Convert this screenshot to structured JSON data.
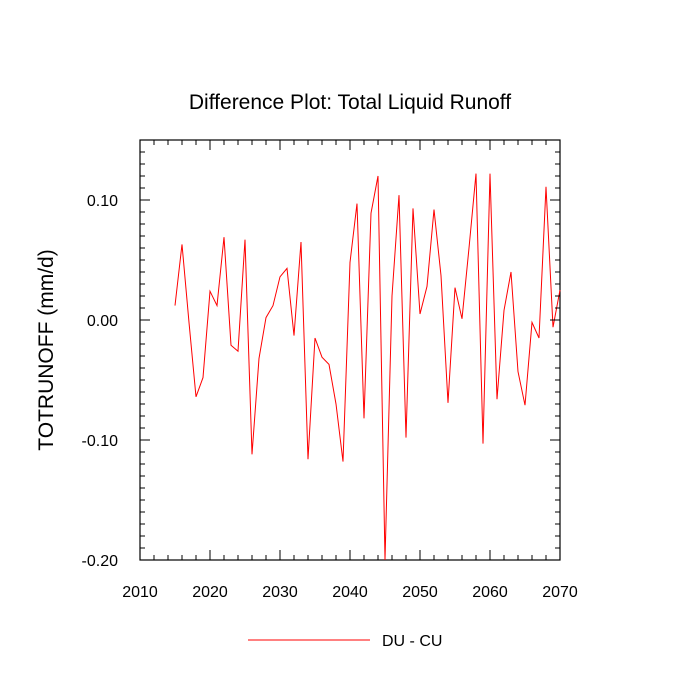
{
  "chart_data": {
    "type": "line",
    "title": "Difference Plot: Total Liquid Runoff",
    "xlabel": "",
    "ylabel": "TOTRUNOFF  (mm/d)",
    "xlim": [
      2010,
      2070
    ],
    "ylim": [
      -0.2,
      0.15
    ],
    "x_ticks": [
      2010,
      2020,
      2030,
      2040,
      2050,
      2060,
      2070
    ],
    "x_tick_labels": [
      "2010",
      "2020",
      "2030",
      "2040",
      "2050",
      "2060",
      "2070"
    ],
    "y_ticks": [
      -0.2,
      -0.1,
      0.0,
      0.1
    ],
    "y_tick_labels": [
      "-0.20",
      "-0.10",
      "0.00",
      "0.10"
    ],
    "grid": false,
    "legend_position": "bottom-center",
    "series": [
      {
        "name": "DU - CU",
        "color": "#ff0000",
        "x": [
          2015,
          2016,
          2017,
          2018,
          2019,
          2020,
          2021,
          2022,
          2023,
          2024,
          2025,
          2026,
          2027,
          2028,
          2029,
          2030,
          2031,
          2032,
          2033,
          2034,
          2035,
          2036,
          2037,
          2038,
          2039,
          2040,
          2041,
          2042,
          2043,
          2044,
          2045,
          2046,
          2047,
          2048,
          2049,
          2050,
          2051,
          2052,
          2053,
          2054,
          2055,
          2056,
          2057,
          2058,
          2059,
          2060,
          2061,
          2062,
          2063,
          2064,
          2065,
          2066,
          2067,
          2068,
          2069,
          2070
        ],
        "values": [
          0.012,
          0.063,
          -0.002,
          -0.064,
          -0.048,
          0.024,
          0.012,
          0.069,
          -0.021,
          -0.026,
          0.067,
          -0.112,
          -0.032,
          0.002,
          0.012,
          0.036,
          0.043,
          -0.013,
          0.065,
          -0.116,
          -0.015,
          -0.031,
          -0.037,
          -0.07,
          -0.118,
          0.048,
          0.097,
          -0.082,
          0.089,
          0.12,
          -0.2,
          0.02,
          0.104,
          -0.098,
          0.093,
          0.005,
          0.028,
          0.092,
          0.037,
          -0.069,
          0.027,
          0.001,
          0.06,
          0.122,
          -0.103,
          0.122,
          -0.066,
          0.008,
          0.04,
          -0.043,
          -0.071,
          -0.002,
          -0.015,
          0.111,
          -0.006,
          0.025
        ]
      }
    ]
  }
}
